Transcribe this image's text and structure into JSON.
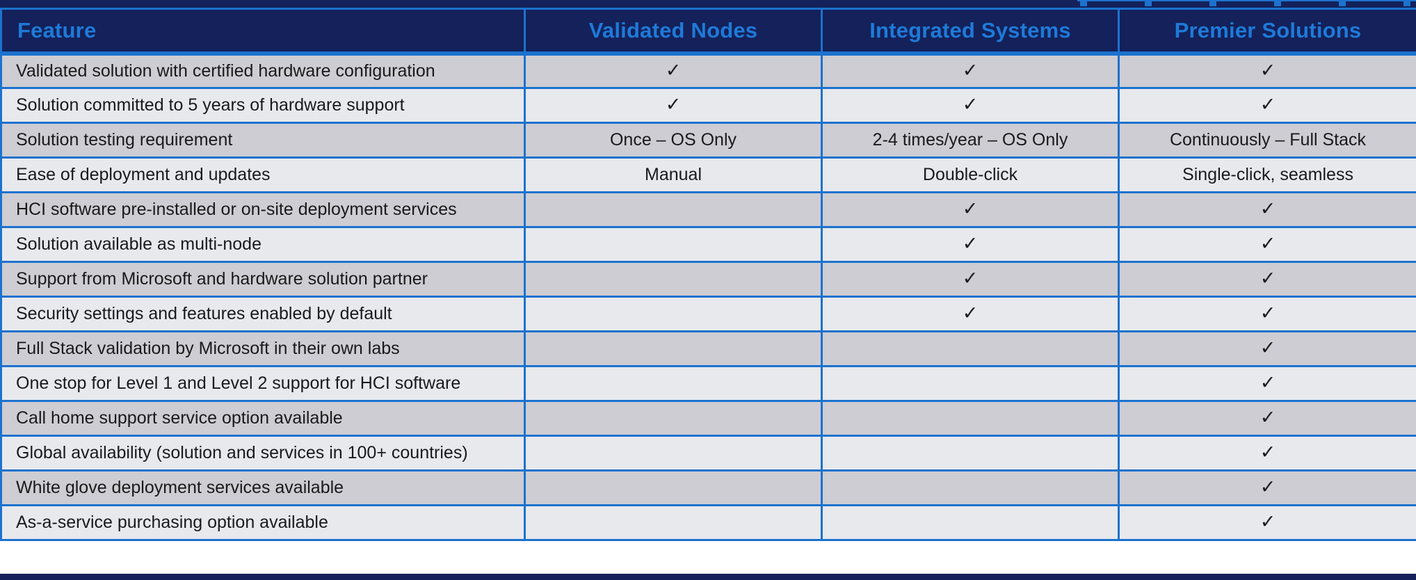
{
  "colors": {
    "header_background": "#14215A",
    "header_text": "#1E7AD8",
    "grid_border": "#1C72CE",
    "row_alt_dark": "#CDCDD3",
    "row_alt_light": "#E8E9ED",
    "body_text": "#1A1A1C"
  },
  "icons": {
    "check": "✓"
  },
  "chart_data": {
    "type": "table",
    "title": "",
    "columns": [
      "Feature",
      "Validated Nodes",
      "Integrated Systems",
      "Premier Solutions"
    ],
    "rows": [
      {
        "feature": "Validated solution with certified hardware configuration",
        "values": [
          "✓",
          "✓",
          "✓"
        ]
      },
      {
        "feature": "Solution committed to 5 years of hardware support",
        "values": [
          "✓",
          "✓",
          "✓"
        ]
      },
      {
        "feature": "Solution testing requirement",
        "values": [
          "Once – OS Only",
          "2-4 times/year – OS Only",
          "Continuously – Full Stack"
        ]
      },
      {
        "feature": "Ease of deployment and updates",
        "values": [
          "Manual",
          "Double-click",
          "Single-click, seamless"
        ]
      },
      {
        "feature": "HCI software pre-installed or on-site deployment services",
        "values": [
          "",
          "✓",
          "✓"
        ]
      },
      {
        "feature": "Solution available as multi-node",
        "values": [
          "",
          "✓",
          "✓"
        ]
      },
      {
        "feature": "Support from Microsoft and hardware solution partner",
        "values": [
          "",
          "✓",
          "✓"
        ]
      },
      {
        "feature": "Security settings and features enabled by default",
        "values": [
          "",
          "✓",
          "✓"
        ]
      },
      {
        "feature": "Full Stack validation by Microsoft in their own labs",
        "values": [
          "",
          "",
          "✓"
        ]
      },
      {
        "feature": "One stop for Level 1 and Level 2 support for HCI software",
        "values": [
          "",
          "",
          "✓"
        ]
      },
      {
        "feature": "Call home support service option available",
        "values": [
          "",
          "",
          "✓"
        ]
      },
      {
        "feature": "Global availability (solution and services in 100+ countries)",
        "values": [
          "",
          "",
          "✓"
        ]
      },
      {
        "feature": "White glove deployment services available",
        "values": [
          "",
          "",
          "✓"
        ]
      },
      {
        "feature": "As-a-service purchasing option available",
        "values": [
          "",
          "",
          "✓"
        ]
      }
    ]
  }
}
